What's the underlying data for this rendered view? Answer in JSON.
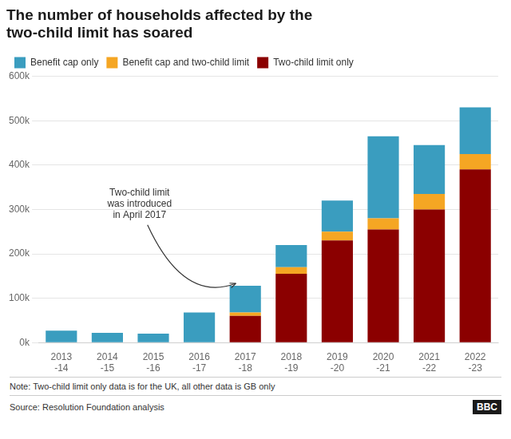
{
  "chart_data": {
    "type": "bar",
    "title": "The number of households affected by the\ntwo-child limit has soared",
    "categories": [
      "2013\n-14",
      "2014\n-15",
      "2015\n-16",
      "2016\n-17",
      "2017\n-18",
      "2018\n-19",
      "2019\n-20",
      "2020\n-21",
      "2021\n-22",
      "2022\n-23"
    ],
    "series": [
      {
        "name": "Two-child limit only",
        "color": "#8b0000",
        "values": [
          0,
          0,
          0,
          0,
          60000,
          155000,
          230000,
          255000,
          300000,
          390000
        ]
      },
      {
        "name": "Benefit cap and two-child limit",
        "color": "#f5a623",
        "values": [
          0,
          0,
          0,
          0,
          8000,
          15000,
          20000,
          25000,
          35000,
          35000
        ]
      },
      {
        "name": "Benefit cap only",
        "color": "#3a9dbf",
        "values": [
          27000,
          22000,
          20000,
          68000,
          60000,
          50000,
          70000,
          185000,
          110000,
          105000
        ]
      }
    ],
    "stacked": true,
    "ylim": [
      0,
      600000
    ],
    "yticks": [
      {
        "value": 0,
        "label": "0k"
      },
      {
        "value": 100000,
        "label": "100k"
      },
      {
        "value": 200000,
        "label": "200k"
      },
      {
        "value": 300000,
        "label": "300k"
      },
      {
        "value": 400000,
        "label": "400k"
      },
      {
        "value": 500000,
        "label": "500k"
      },
      {
        "value": 600000,
        "label": "600k"
      }
    ],
    "grid": true,
    "legend": "upper left",
    "annotations": [
      {
        "text": "Two-child limit\nwas introduced\nin April 2017",
        "x": "2017\n-18"
      }
    ],
    "note": "Note: Two-child limit only data is for the UK, all other data is GB only",
    "source": "Source: Resolution Foundation analysis",
    "badge": "BBC"
  }
}
